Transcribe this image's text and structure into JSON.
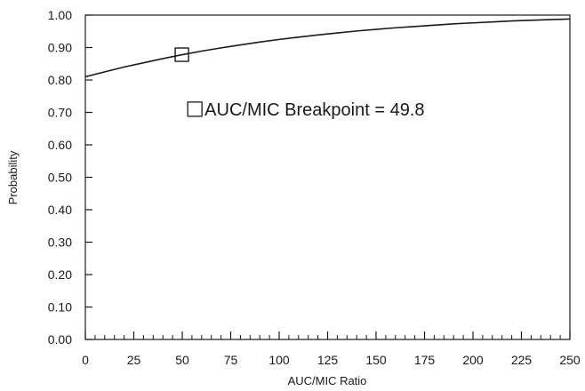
{
  "chart_data": {
    "type": "line",
    "xlabel": "AUC/MIC Ratio",
    "ylabel": "Probability",
    "xlim": [
      0,
      250
    ],
    "ylim": [
      0,
      1.0
    ],
    "x_ticks": [
      0,
      25,
      50,
      75,
      100,
      125,
      150,
      175,
      200,
      225,
      250
    ],
    "x_tick_labels": [
      "0",
      "25",
      "50",
      "75",
      "100",
      "125",
      "150",
      "175",
      "200",
      "225",
      "250"
    ],
    "y_ticks": [
      0,
      0.1,
      0.2,
      0.3,
      0.4,
      0.5,
      0.6,
      0.7,
      0.8,
      0.9,
      1.0
    ],
    "y_tick_labels": [
      "0.00",
      "0.10",
      "0.20",
      "0.30",
      "0.40",
      "0.50",
      "0.60",
      "0.70",
      "0.80",
      "0.90",
      "1.00"
    ],
    "x_minor_step": 5,
    "grid": false,
    "series": [
      {
        "x": [
          0,
          10,
          20,
          30,
          40,
          50,
          60,
          70,
          80,
          90,
          100,
          110,
          120,
          130,
          140,
          150,
          160,
          170,
          180,
          190,
          200,
          210,
          220,
          230,
          240,
          250
        ],
        "values": [
          0.81,
          0.825,
          0.84,
          0.853,
          0.866,
          0.878,
          0.889,
          0.899,
          0.908,
          0.917,
          0.925,
          0.932,
          0.939,
          0.945,
          0.951,
          0.956,
          0.961,
          0.965,
          0.969,
          0.973,
          0.976,
          0.979,
          0.982,
          0.984,
          0.986,
          0.988
        ]
      }
    ],
    "marker": {
      "x": 49.8,
      "y": 0.878,
      "shape": "square"
    },
    "legend": {
      "label": "AUC/MIC Breakpoint = 49.8",
      "shape": "square",
      "anchor_x": 62,
      "anchor_y": 0.71
    }
  }
}
